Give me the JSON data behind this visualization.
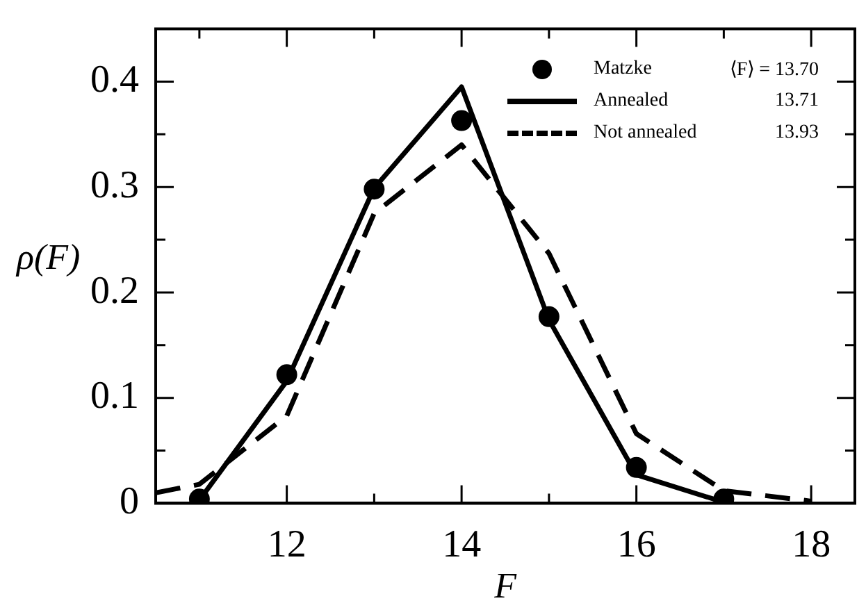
{
  "chart_data": {
    "type": "line",
    "xlabel": "F",
    "ylabel": "ρ(F)",
    "xlim": [
      10.5,
      18.5
    ],
    "ylim": [
      0,
      0.45
    ],
    "xticks": [
      {
        "value": 11,
        "label": null
      },
      12,
      {
        "value": 13,
        "label": null
      },
      14,
      {
        "value": 15,
        "label": null
      },
      16,
      {
        "value": 17,
        "label": null
      },
      18
    ],
    "yticks": [
      0,
      {
        "value": 0.05,
        "label": null
      },
      0.1,
      {
        "value": 0.15,
        "label": null
      },
      0.2,
      {
        "value": 0.25,
        "label": null
      },
      0.3,
      {
        "value": 0.35,
        "label": null
      },
      0.4
    ],
    "grid": false,
    "legend": "top right",
    "annotations": [
      "⟨F⟩ = 13.70",
      "13.71",
      "13.93"
    ],
    "series": [
      {
        "name": "Matzke",
        "type": "scatter",
        "marker": "circle",
        "color": "#000000",
        "x": [
          11,
          12,
          13,
          14,
          15,
          16,
          17
        ],
        "values": [
          0.004,
          0.122,
          0.298,
          0.363,
          0.177,
          0.034,
          0.004
        ]
      },
      {
        "name": "Annealed",
        "marker": "none",
        "line_style": "solid",
        "color": "#000000",
        "x": [
          11,
          12,
          13,
          14,
          15,
          16,
          17
        ],
        "values": [
          0.003,
          0.116,
          0.299,
          0.395,
          0.174,
          0.027,
          0.001
        ]
      },
      {
        "name": "Not annealed",
        "marker": "none",
        "line_style": "dashed",
        "color": "#000000",
        "x": [
          10.5,
          11,
          12,
          13,
          14,
          15,
          16,
          17,
          18
        ],
        "values": [
          0.01,
          0.018,
          0.083,
          0.275,
          0.34,
          0.237,
          0.066,
          0.012,
          0.002
        ]
      }
    ]
  }
}
